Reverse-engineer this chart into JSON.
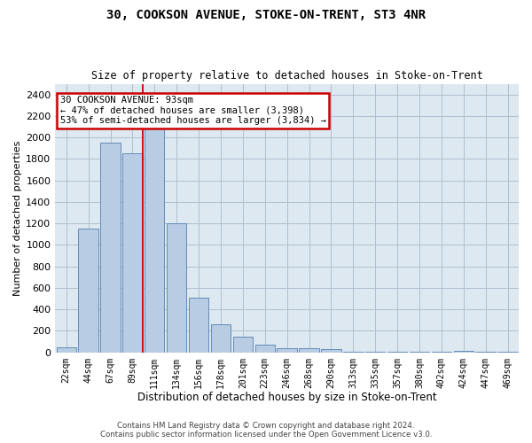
{
  "title": "30, COOKSON AVENUE, STOKE-ON-TRENT, ST3 4NR",
  "subtitle": "Size of property relative to detached houses in Stoke-on-Trent",
  "xlabel": "Distribution of detached houses by size in Stoke-on-Trent",
  "ylabel": "Number of detached properties",
  "footer_line1": "Contains HM Land Registry data © Crown copyright and database right 2024.",
  "footer_line2": "Contains public sector information licensed under the Open Government Licence v3.0.",
  "annotation_line1": "30 COOKSON AVENUE: 93sqm",
  "annotation_line2": "← 47% of detached houses are smaller (3,398)",
  "annotation_line3": "53% of semi-detached houses are larger (3,834) →",
  "categories": [
    "22sqm",
    "44sqm",
    "67sqm",
    "89sqm",
    "111sqm",
    "134sqm",
    "156sqm",
    "178sqm",
    "201sqm",
    "223sqm",
    "246sqm",
    "268sqm",
    "290sqm",
    "313sqm",
    "335sqm",
    "357sqm",
    "380sqm",
    "402sqm",
    "424sqm",
    "447sqm",
    "469sqm"
  ],
  "values": [
    50,
    1150,
    1950,
    1850,
    2100,
    1200,
    510,
    260,
    150,
    70,
    40,
    40,
    30,
    10,
    10,
    5,
    5,
    5,
    15,
    3,
    3
  ],
  "bar_color": "#b8cce4",
  "bar_edge_color": "#5580b0",
  "vline_color": "#cc0000",
  "vline_x_index": 3,
  "annotation_box_color": "#cc0000",
  "bg_axes": "#dde8f0",
  "bg_fig": "#ffffff",
  "grid_color": "#b0bfcf",
  "ylim": [
    0,
    2500
  ],
  "yticks": [
    0,
    200,
    400,
    600,
    800,
    1000,
    1200,
    1400,
    1600,
    1800,
    2000,
    2200,
    2400
  ]
}
